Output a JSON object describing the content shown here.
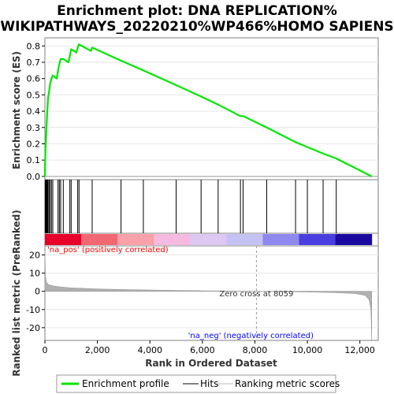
{
  "chart_data": {
    "type": "line",
    "title_line1": "Enrichment plot: DNA REPLICATION%",
    "title_line2": "WIKIPATHWAYS_20220210%WP466%HOMO SAPIENS",
    "xlabel": "Rank in Ordered Dataset",
    "ylabel_top": "Enrichment score (ES)",
    "ylabel_bottom": "Ranked list metric (PreRanked)",
    "x_range": [
      0,
      12700
    ],
    "x_ticks": [
      0,
      2000,
      4000,
      6000,
      8000,
      10000,
      12000
    ],
    "x_tick_labels": [
      "0",
      "2,000",
      "4,000",
      "6,000",
      "8,000",
      "10,000",
      "12,000"
    ],
    "es_ylim": [
      -0.02,
      0.85
    ],
    "es_ticks": [
      0.0,
      0.1,
      0.2,
      0.3,
      0.4,
      0.5,
      0.6,
      0.7,
      0.8
    ],
    "es_tick_labels": [
      "0.0",
      "0.1",
      "0.2",
      "0.3",
      "0.4",
      "0.5",
      "0.6",
      "0.7",
      "0.8"
    ],
    "metric_ylim": [
      -27,
      25
    ],
    "metric_ticks": [
      -20,
      -10,
      0,
      10,
      20
    ],
    "metric_tick_labels": [
      "-20",
      "-10",
      "0",
      "10",
      "20"
    ],
    "hit_positions": [
      10,
      30,
      60,
      90,
      120,
      160,
      200,
      250,
      300,
      500,
      550,
      600,
      700,
      950,
      1000,
      1250,
      1300,
      1800,
      2900,
      3750,
      5000,
      5950,
      6600,
      7450,
      7550,
      8450,
      9550,
      10000,
      10600,
      11100
    ],
    "es_curve": [
      [
        0,
        0.0
      ],
      [
        10,
        0.1
      ],
      [
        30,
        0.2
      ],
      [
        60,
        0.3
      ],
      [
        90,
        0.4
      ],
      [
        120,
        0.48
      ],
      [
        160,
        0.52
      ],
      [
        200,
        0.57
      ],
      [
        250,
        0.6
      ],
      [
        300,
        0.62
      ],
      [
        450,
        0.6
      ],
      [
        500,
        0.65
      ],
      [
        550,
        0.69
      ],
      [
        600,
        0.72
      ],
      [
        700,
        0.72
      ],
      [
        900,
        0.7
      ],
      [
        950,
        0.74
      ],
      [
        1000,
        0.78
      ],
      [
        1200,
        0.76
      ],
      [
        1250,
        0.79
      ],
      [
        1300,
        0.81
      ],
      [
        1750,
        0.77
      ],
      [
        1800,
        0.79
      ],
      [
        2900,
        0.71
      ],
      [
        3750,
        0.65
      ],
      [
        5000,
        0.56
      ],
      [
        5950,
        0.49
      ],
      [
        6600,
        0.44
      ],
      [
        7450,
        0.37
      ],
      [
        7550,
        0.37
      ],
      [
        8450,
        0.3
      ],
      [
        9550,
        0.21
      ],
      [
        10000,
        0.18
      ],
      [
        10600,
        0.14
      ],
      [
        11100,
        0.11
      ],
      [
        12450,
        0.0
      ]
    ],
    "metric_curve": [
      [
        0,
        22
      ],
      [
        20,
        8
      ],
      [
        60,
        5
      ],
      [
        150,
        3.6
      ],
      [
        300,
        3
      ],
      [
        600,
        2.4
      ],
      [
        1000,
        1.9
      ],
      [
        2000,
        1.3
      ],
      [
        3000,
        1.0
      ],
      [
        4000,
        0.75
      ],
      [
        5000,
        0.5
      ],
      [
        6000,
        0.3
      ],
      [
        7000,
        0.15
      ],
      [
        8059,
        0
      ],
      [
        9000,
        -0.2
      ],
      [
        10000,
        -0.4
      ],
      [
        11000,
        -0.7
      ],
      [
        11800,
        -1.2
      ],
      [
        12200,
        -2.2
      ],
      [
        12350,
        -4.5
      ],
      [
        12420,
        -10
      ],
      [
        12450,
        -27
      ]
    ],
    "zero_cross_rank": 8059,
    "zero_cross_label": "Zero cross at 8059",
    "pos_label": "'na_pos' (positively correlated)",
    "neg_label": "'na_neg' (negatively correlated)",
    "legend": [
      {
        "label": "Enrichment profile",
        "color": "#00e600",
        "kind": "thick-line"
      },
      {
        "label": "Hits",
        "color": "#000000",
        "kind": "line"
      },
      {
        "label": "Ranking metric scores",
        "color": "#bbbbbb",
        "kind": "line"
      }
    ],
    "colors": {
      "es_line": "#00e600",
      "hits": "#000000",
      "metric_fill": "#b0b0b0",
      "pos_text": "#ff0000",
      "neg_text": "#0000ff",
      "gradient": [
        "#e8002a",
        "#f26872",
        "#f9a0a8",
        "#f6b9e0",
        "#dcc8f2",
        "#c4c2f2",
        "#8f88ee",
        "#4a3ee0",
        "#1a0aa0"
      ]
    }
  }
}
